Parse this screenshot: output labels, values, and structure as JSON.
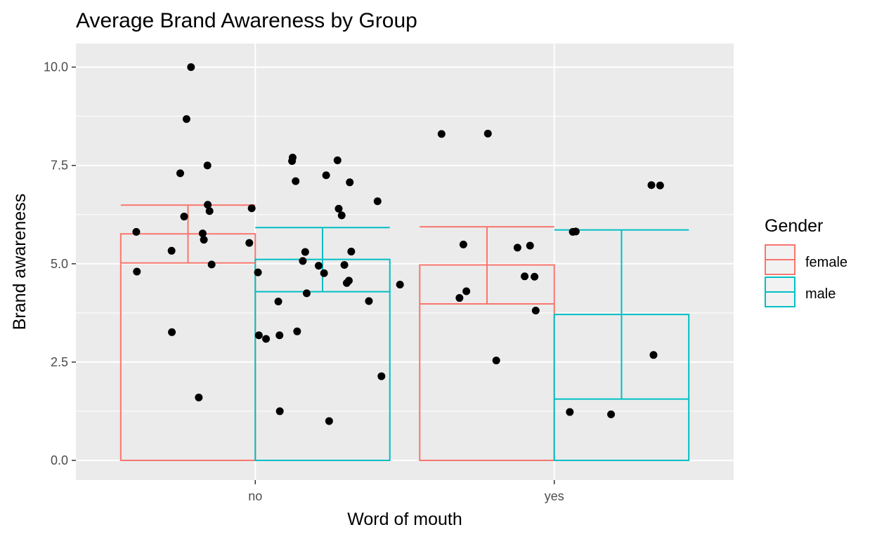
{
  "chart_data": {
    "type": "bar",
    "title": "Average Brand Awareness by Group",
    "xlabel": "Word of mouth",
    "ylabel": "Brand awareness",
    "categories": [
      "no",
      "yes"
    ],
    "ylim": [
      -0.5,
      10.6
    ],
    "y_ticks": [
      0,
      2.5,
      5,
      7.5,
      10
    ],
    "y_tick_labels": [
      "0.0",
      "2.5",
      "5.0",
      "7.5",
      "10.0"
    ],
    "grid": true,
    "legend": {
      "title": "Gender",
      "position": "right"
    },
    "series": [
      {
        "name": "female",
        "color": "#F8766D",
        "values": [
          5.76,
          4.97
        ],
        "error_low": [
          5.02,
          3.98
        ],
        "error_high": [
          6.49,
          5.94
        ]
      },
      {
        "name": "male",
        "color": "#00BFC4",
        "values": [
          5.11,
          3.71
        ],
        "error_low": [
          4.29,
          1.56
        ],
        "error_high": [
          5.92,
          5.86
        ]
      }
    ],
    "points": {
      "color": "#000000",
      "x": [
        0.602,
        0.604,
        0.72,
        0.721,
        0.749,
        0.762,
        0.77,
        0.785,
        0.811,
        0.824,
        0.828,
        0.84,
        0.841,
        0.847,
        0.854,
        0.98,
        0.988,
        1.009,
        1.012,
        1.036,
        1.077,
        1.081,
        1.082,
        1.123,
        1.125,
        1.135,
        1.14,
        1.159,
        1.167,
        1.172,
        1.212,
        1.23,
        1.237,
        1.247,
        1.275,
        1.279,
        1.289,
        1.298,
        1.306,
        1.313,
        1.316,
        1.321,
        1.38,
        1.409,
        1.422,
        1.484,
        1.623,
        1.683,
        1.696,
        1.706,
        1.778,
        1.806,
        1.877,
        1.901,
        1.919,
        1.934,
        1.938,
        2.052,
        2.072,
        2.062,
        2.19,
        2.332,
        2.354,
        2.325
      ],
      "y": [
        5.81,
        4.8,
        5.33,
        3.26,
        7.3,
        6.2,
        8.68,
        10.0,
        1.6,
        5.77,
        5.61,
        7.5,
        6.5,
        6.34,
        4.98,
        5.53,
        6.41,
        4.78,
        3.18,
        3.09,
        4.04,
        3.18,
        1.25,
        7.61,
        7.7,
        7.1,
        3.28,
        5.07,
        5.3,
        4.25,
        4.95,
        4.76,
        7.25,
        1.0,
        7.63,
        6.4,
        6.23,
        4.97,
        4.51,
        4.57,
        7.07,
        5.31,
        4.05,
        6.59,
        2.14,
        4.47,
        8.3,
        4.13,
        5.49,
        4.3,
        8.31,
        2.54,
        5.41,
        4.68,
        5.46,
        4.67,
        3.81,
        1.23,
        5.82,
        5.81,
        1.17,
        2.68,
        6.99,
        7.0
      ]
    }
  }
}
